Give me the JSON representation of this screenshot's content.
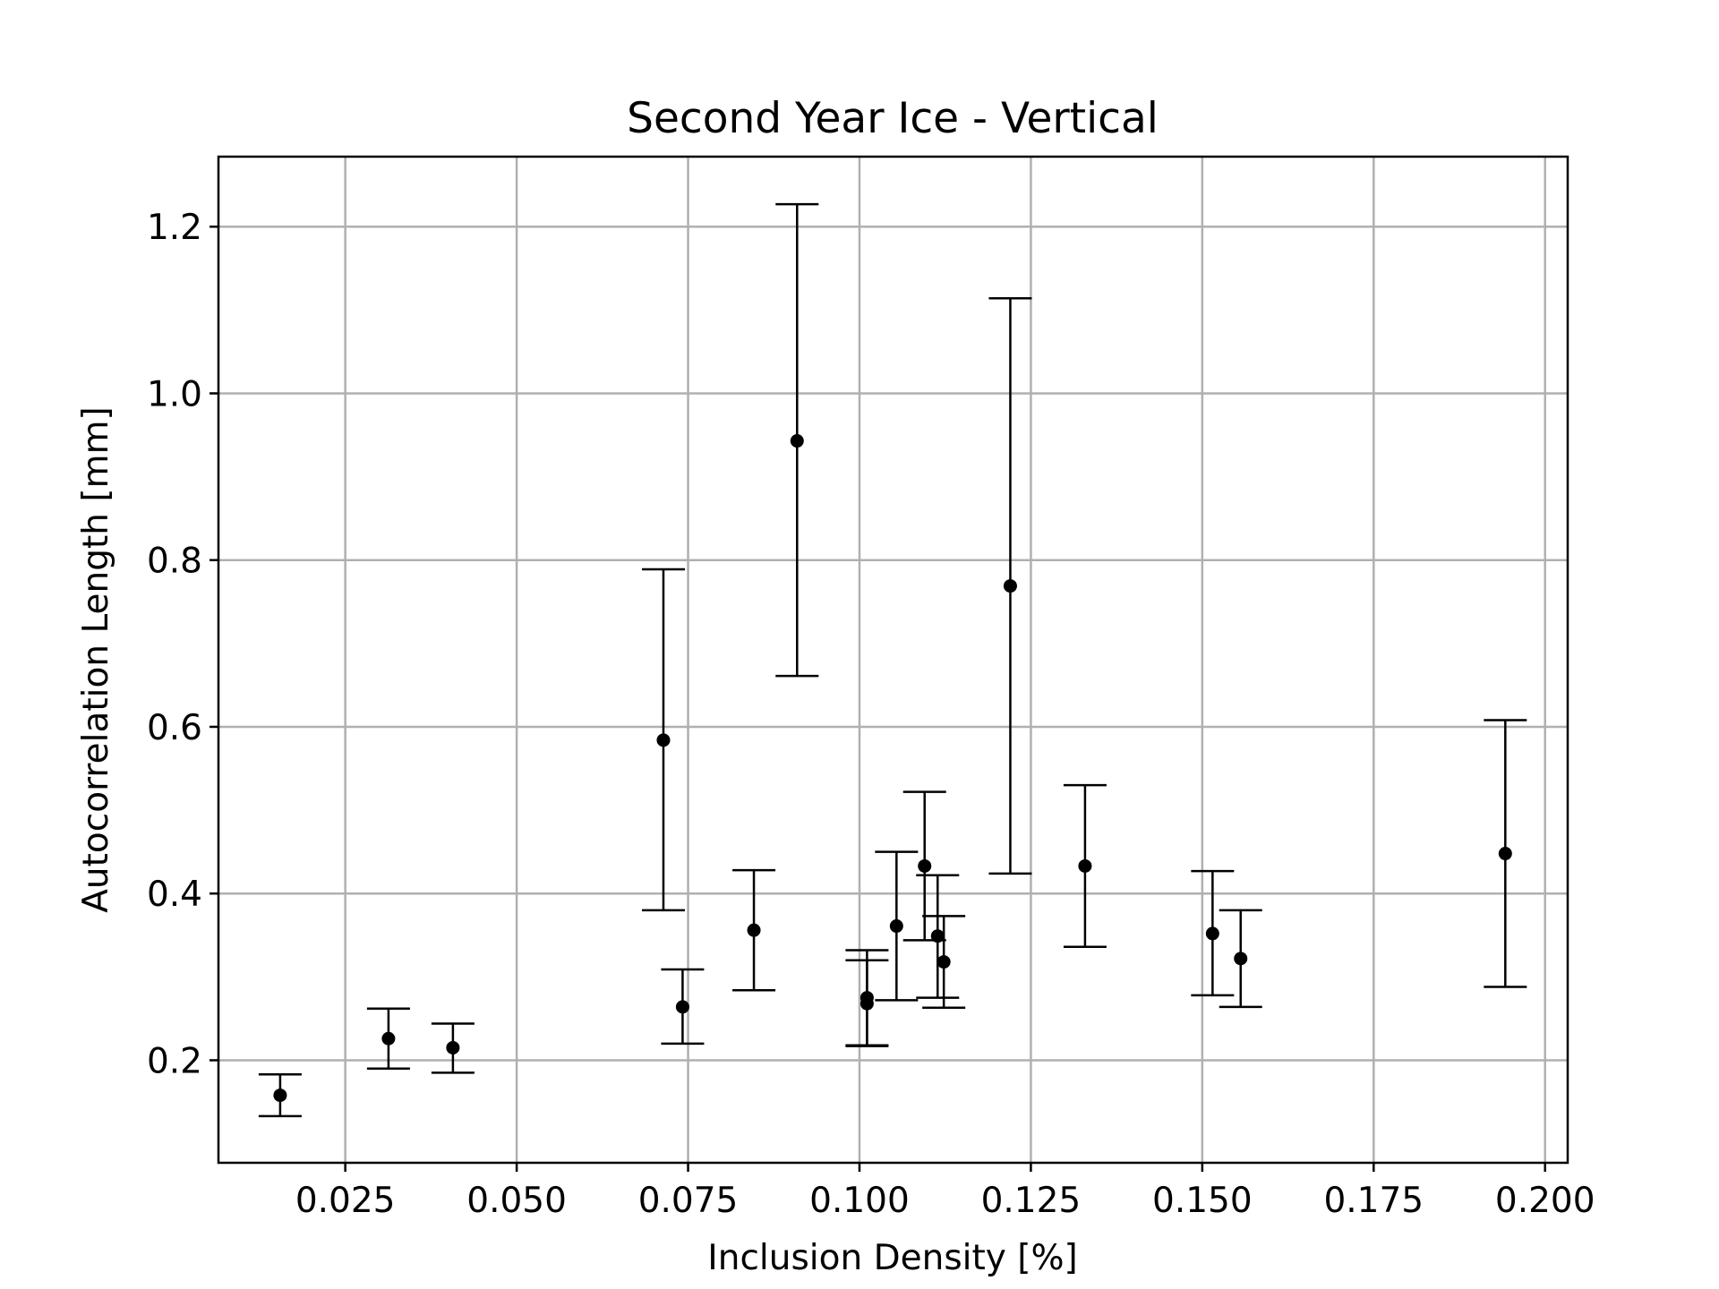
{
  "chart_data": {
    "type": "scatter",
    "title": "Second Year Ice - Vertical",
    "xlabel": "Inclusion Density [%]",
    "ylabel": "Autocorrelation Length [mm]",
    "xlim": [
      0.0065,
      0.2033
    ],
    "ylim": [
      0.077,
      1.284
    ],
    "grid": true,
    "xticks": [
      0.025,
      0.05,
      0.075,
      0.1,
      0.125,
      0.15,
      0.175,
      0.2
    ],
    "xtick_labels": [
      "0.025",
      "0.050",
      "0.075",
      "0.100",
      "0.125",
      "0.150",
      "0.175",
      "0.200"
    ],
    "yticks": [
      0.2,
      0.4,
      0.6,
      0.8,
      1.0,
      1.2
    ],
    "ytick_labels": [
      "0.2",
      "0.4",
      "0.6",
      "0.8",
      "1.0",
      "1.2"
    ],
    "series": [
      {
        "marker_color": "#000000",
        "points": [
          {
            "x": 0.0155,
            "y": 0.158,
            "ylow": 0.133,
            "yhigh": 0.183
          },
          {
            "x": 0.0313,
            "y": 0.226,
            "ylow": 0.19,
            "yhigh": 0.262
          },
          {
            "x": 0.0407,
            "y": 0.215,
            "ylow": 0.185,
            "yhigh": 0.244
          },
          {
            "x": 0.0714,
            "y": 0.584,
            "ylow": 0.38,
            "yhigh": 0.789
          },
          {
            "x": 0.0742,
            "y": 0.264,
            "ylow": 0.22,
            "yhigh": 0.309
          },
          {
            "x": 0.0846,
            "y": 0.356,
            "ylow": 0.284,
            "yhigh": 0.428
          },
          {
            "x": 0.0909,
            "y": 0.943,
            "ylow": 0.661,
            "yhigh": 1.227
          },
          {
            "x": 0.1011,
            "y": 0.275,
            "ylow": 0.218,
            "yhigh": 0.332
          },
          {
            "x": 0.1011,
            "y": 0.268,
            "ylow": 0.217,
            "yhigh": 0.32
          },
          {
            "x": 0.1054,
            "y": 0.361,
            "ylow": 0.272,
            "yhigh": 0.45
          },
          {
            "x": 0.1095,
            "y": 0.433,
            "ylow": 0.344,
            "yhigh": 0.522
          },
          {
            "x": 0.1114,
            "y": 0.349,
            "ylow": 0.275,
            "yhigh": 0.422
          },
          {
            "x": 0.1123,
            "y": 0.318,
            "ylow": 0.263,
            "yhigh": 0.373
          },
          {
            "x": 0.122,
            "y": 0.769,
            "ylow": 0.424,
            "yhigh": 1.114
          },
          {
            "x": 0.1329,
            "y": 0.433,
            "ylow": 0.336,
            "yhigh": 0.53
          },
          {
            "x": 0.1515,
            "y": 0.352,
            "ylow": 0.278,
            "yhigh": 0.427
          },
          {
            "x": 0.1556,
            "y": 0.322,
            "ylow": 0.264,
            "yhigh": 0.38
          },
          {
            "x": 0.1942,
            "y": 0.448,
            "ylow": 0.288,
            "yhigh": 0.608
          }
        ]
      }
    ]
  }
}
